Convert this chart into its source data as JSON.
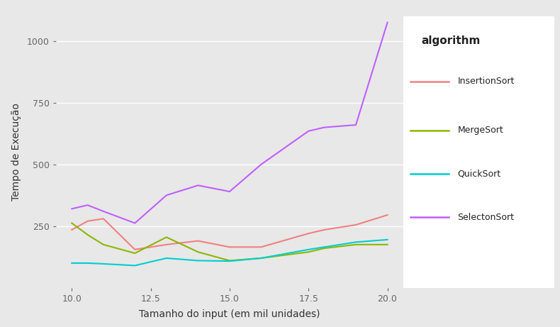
{
  "x": [
    10.0,
    10.5,
    11.0,
    12.0,
    13.0,
    14.0,
    15.0,
    16.0,
    17.5,
    18.0,
    19.0,
    20.0
  ],
  "InsertionSort": [
    235,
    270,
    280,
    155,
    175,
    190,
    165,
    165,
    220,
    235,
    255,
    295
  ],
  "MergeSort": [
    262,
    215,
    175,
    140,
    205,
    145,
    110,
    120,
    145,
    160,
    175,
    175
  ],
  "QuickSort": [
    100,
    100,
    97,
    90,
    120,
    110,
    108,
    120,
    155,
    165,
    185,
    195
  ],
  "SelectonSort": [
    320,
    335,
    310,
    262,
    375,
    415,
    390,
    500,
    635,
    650,
    660,
    1075
  ],
  "colors": {
    "InsertionSort": "#F08080",
    "MergeSort": "#8DB600",
    "QuickSort": "#00CED1",
    "SelectonSort": "#BF5FFF"
  },
  "xlabel": "Tamanho do input (em mil unidades)",
  "ylabel": "Tempo de Execução",
  "xlim": [
    9.5,
    20.5
  ],
  "ylim": [
    0,
    1100
  ],
  "xticks": [
    10.0,
    12.5,
    15.0,
    17.5,
    20.0
  ],
  "yticks": [
    250,
    500,
    750,
    1000
  ],
  "legend_title": "algorithm",
  "plot_bg_color": "#E8E8E8",
  "fig_bg_color": "#E8E8E8",
  "legend_bg_color": "#FFFFFF",
  "grid_color": "#FFFFFF",
  "tick_color": "#666666",
  "label_color": "#333333"
}
